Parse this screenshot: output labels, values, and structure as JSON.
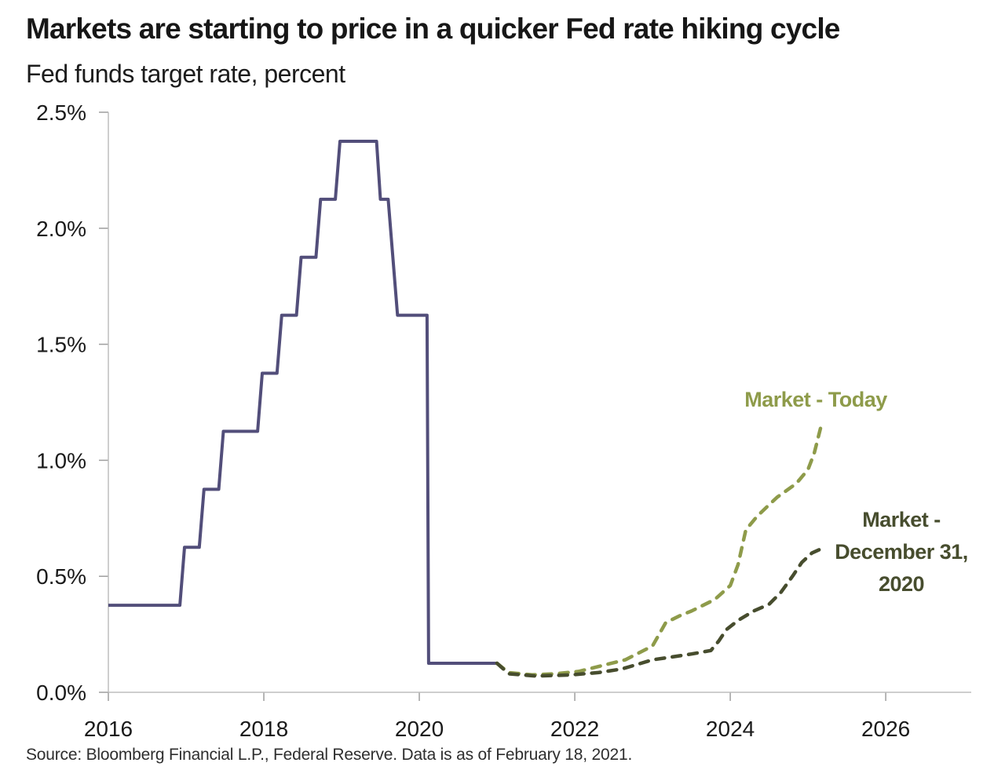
{
  "header": {
    "title": "Markets are starting to price in a quicker Fed rate hiking cycle",
    "subtitle": "Fed funds target rate, percent"
  },
  "source": "Source: Bloomberg Financial L.P., Federal Reserve. Data is as of February 18, 2021.",
  "chart_data": {
    "type": "line",
    "title": "Markets are starting to price in a quicker Fed rate hiking cycle",
    "subtitle": "Fed funds target rate, percent",
    "xlabel": "",
    "ylabel": "Fed funds target rate, percent",
    "xlim": [
      2016,
      2027.1
    ],
    "ylim": [
      0,
      2.5
    ],
    "grid": false,
    "legend_position": "inline-end-of-line",
    "axis_color": "#BDBDBD",
    "tick_color": "#9E9E9E",
    "x_ticks": [
      2016,
      2018,
      2020,
      2022,
      2024,
      2026
    ],
    "x_tick_labels": [
      "2016",
      "2018",
      "2020",
      "2022",
      "2024",
      "2026"
    ],
    "y_ticks": [
      0,
      0.5,
      1.0,
      1.5,
      2.0,
      2.5
    ],
    "y_tick_labels": [
      "0.0%",
      "0.5%",
      "1.0%",
      "1.5%",
      "2.0%",
      "2.5%"
    ],
    "series": [
      {
        "id": "fed-funds-actual",
        "label": "",
        "style": "solid",
        "color": "#524E7A",
        "stroke_width": 4,
        "points": [
          [
            2016.0,
            0.375
          ],
          [
            2016.92,
            0.375
          ],
          [
            2016.98,
            0.625
          ],
          [
            2017.17,
            0.625
          ],
          [
            2017.23,
            0.875
          ],
          [
            2017.42,
            0.875
          ],
          [
            2017.48,
            1.125
          ],
          [
            2017.92,
            1.125
          ],
          [
            2017.98,
            1.375
          ],
          [
            2018.17,
            1.375
          ],
          [
            2018.23,
            1.625
          ],
          [
            2018.42,
            1.625
          ],
          [
            2018.48,
            1.875
          ],
          [
            2018.67,
            1.875
          ],
          [
            2018.73,
            2.125
          ],
          [
            2018.92,
            2.125
          ],
          [
            2018.98,
            2.375
          ],
          [
            2019.45,
            2.375
          ],
          [
            2019.5,
            2.125
          ],
          [
            2019.6,
            2.125
          ],
          [
            2019.72,
            1.625
          ],
          [
            2020.1,
            1.625
          ],
          [
            2020.12,
            0.125
          ],
          [
            2021.0,
            0.125
          ]
        ]
      },
      {
        "id": "market-today",
        "label": "Market - Today",
        "label_lines": [
          "Market - Today"
        ],
        "style": "dashed",
        "color": "#8E9B4A",
        "stroke_width": 4.5,
        "points": [
          [
            2021.0,
            0.125
          ],
          [
            2021.15,
            0.085
          ],
          [
            2021.45,
            0.075
          ],
          [
            2021.75,
            0.08
          ],
          [
            2022.05,
            0.09
          ],
          [
            2022.35,
            0.115
          ],
          [
            2022.65,
            0.14
          ],
          [
            2023.0,
            0.2
          ],
          [
            2023.17,
            0.3
          ],
          [
            2023.35,
            0.33
          ],
          [
            2023.5,
            0.35
          ],
          [
            2023.8,
            0.4
          ],
          [
            2024.0,
            0.46
          ],
          [
            2024.1,
            0.55
          ],
          [
            2024.2,
            0.7
          ],
          [
            2024.35,
            0.76
          ],
          [
            2024.6,
            0.84
          ],
          [
            2024.85,
            0.9
          ],
          [
            2025.0,
            0.96
          ],
          [
            2025.08,
            1.03
          ],
          [
            2025.17,
            1.15
          ]
        ]
      },
      {
        "id": "market-december-31-2020",
        "label": "Market - December 31, 2020",
        "label_lines": [
          "Market -",
          "December 31,",
          "2020"
        ],
        "style": "dashed",
        "color": "#474D2E",
        "stroke_width": 4.5,
        "points": [
          [
            2021.0,
            0.125
          ],
          [
            2021.15,
            0.08
          ],
          [
            2021.5,
            0.07
          ],
          [
            2021.95,
            0.075
          ],
          [
            2022.3,
            0.085
          ],
          [
            2022.6,
            0.1
          ],
          [
            2022.7,
            0.11
          ],
          [
            2023.0,
            0.14
          ],
          [
            2023.2,
            0.15
          ],
          [
            2023.5,
            0.165
          ],
          [
            2023.75,
            0.18
          ],
          [
            2023.85,
            0.22
          ],
          [
            2023.95,
            0.27
          ],
          [
            2024.1,
            0.31
          ],
          [
            2024.3,
            0.35
          ],
          [
            2024.5,
            0.38
          ],
          [
            2024.65,
            0.43
          ],
          [
            2024.8,
            0.5
          ],
          [
            2024.92,
            0.56
          ],
          [
            2025.05,
            0.6
          ],
          [
            2025.18,
            0.62
          ]
        ]
      }
    ]
  }
}
